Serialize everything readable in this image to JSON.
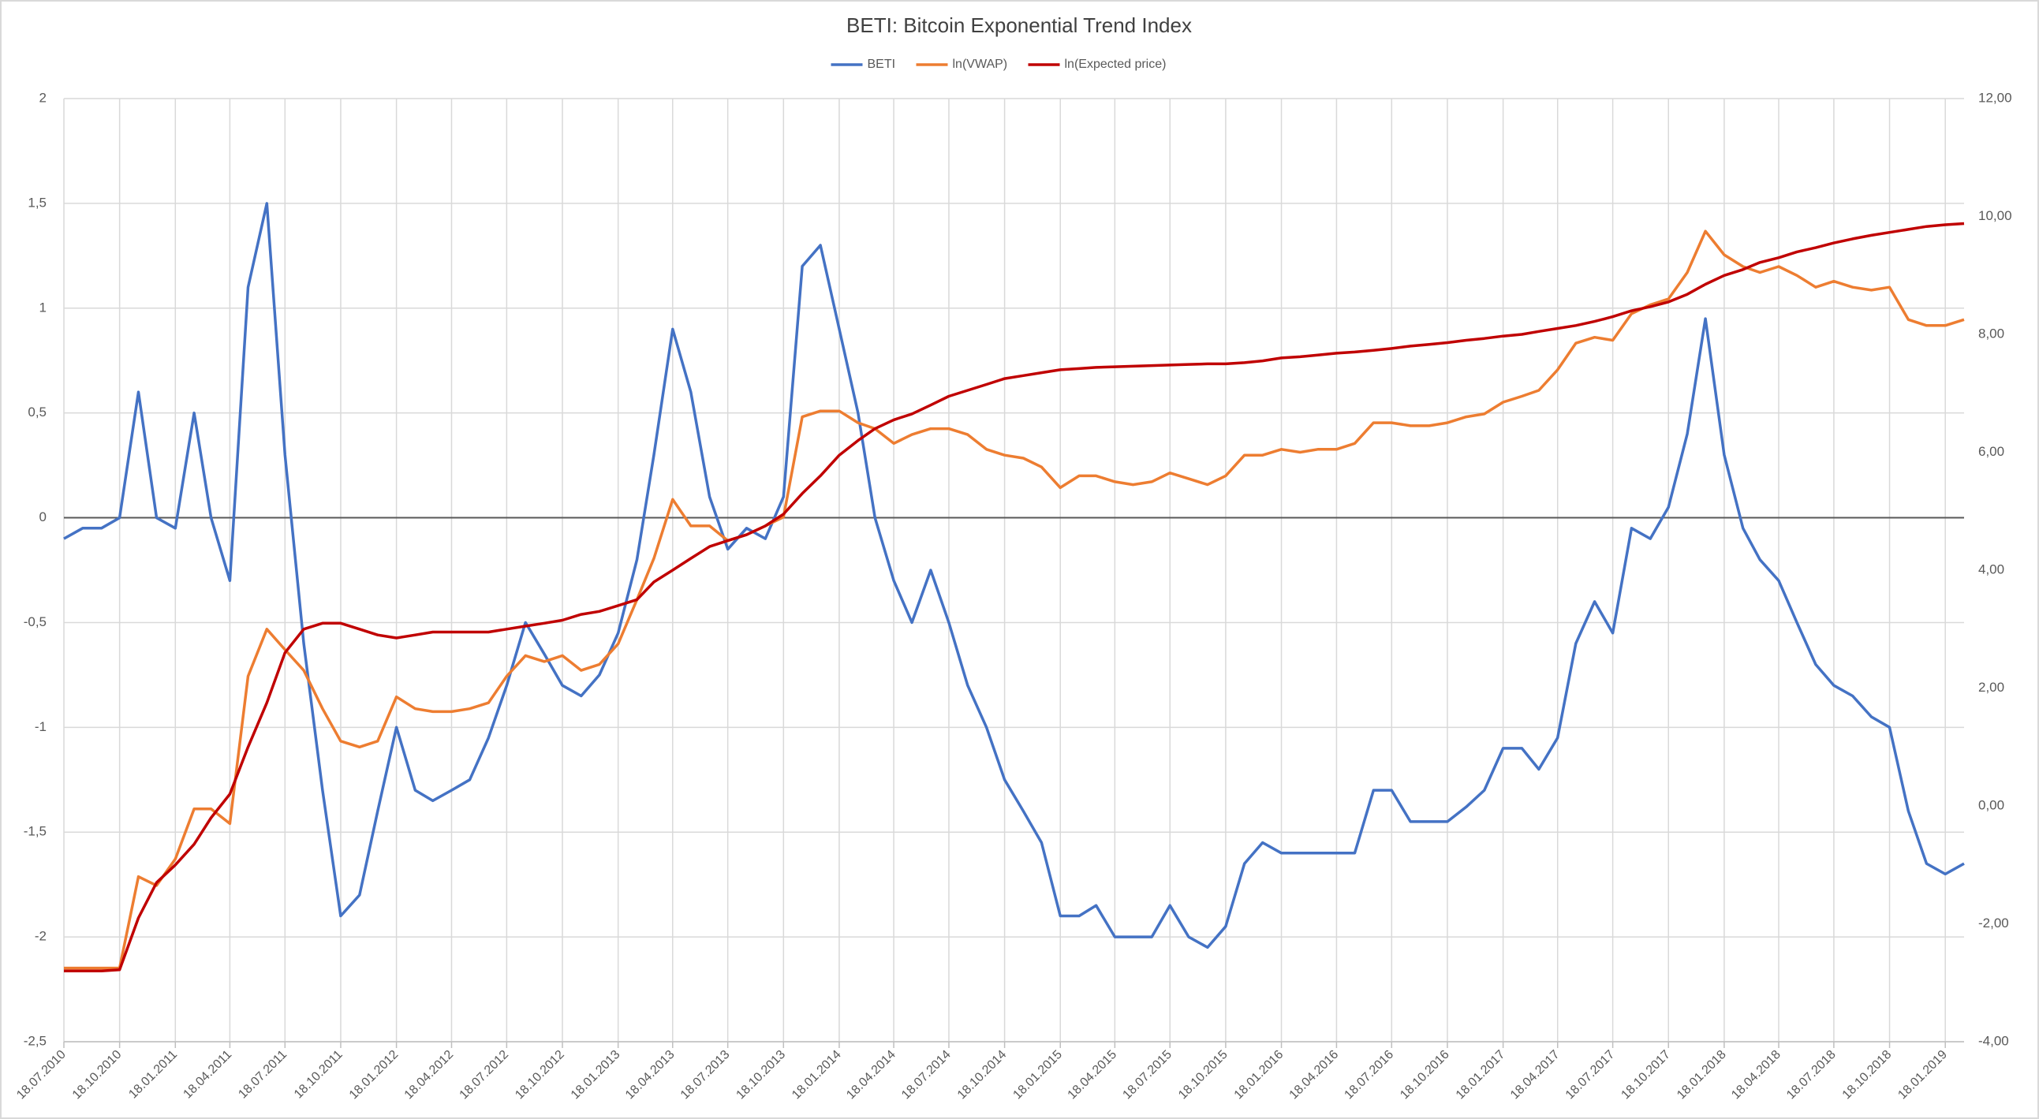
{
  "chart_data": {
    "type": "line",
    "title": "BETI: Bitcoin Exponential Trend Index",
    "x": [
      "18.07.2010",
      "18.08.2010",
      "18.09.2010",
      "18.10.2010",
      "18.11.2010",
      "18.12.2010",
      "18.01.2011",
      "18.02.2011",
      "18.03.2011",
      "18.04.2011",
      "18.05.2011",
      "18.06.2011",
      "18.07.2011",
      "18.08.2011",
      "18.09.2011",
      "18.10.2011",
      "18.11.2011",
      "18.12.2011",
      "18.01.2012",
      "18.02.2012",
      "18.03.2012",
      "18.04.2012",
      "18.05.2012",
      "18.06.2012",
      "18.07.2012",
      "18.08.2012",
      "18.09.2012",
      "18.10.2012",
      "18.11.2012",
      "18.12.2012",
      "18.01.2013",
      "18.02.2013",
      "18.03.2013",
      "18.04.2013",
      "18.05.2013",
      "18.06.2013",
      "18.07.2013",
      "18.08.2013",
      "18.09.2013",
      "18.10.2013",
      "18.11.2013",
      "18.12.2013",
      "18.01.2014",
      "18.02.2014",
      "18.03.2014",
      "18.04.2014",
      "18.05.2014",
      "18.06.2014",
      "18.07.2014",
      "18.08.2014",
      "18.09.2014",
      "18.10.2014",
      "18.11.2014",
      "18.12.2014",
      "18.01.2015",
      "18.02.2015",
      "18.03.2015",
      "18.04.2015",
      "18.05.2015",
      "18.06.2015",
      "18.07.2015",
      "18.08.2015",
      "18.09.2015",
      "18.10.2015",
      "18.11.2015",
      "18.12.2015",
      "18.01.2016",
      "18.02.2016",
      "18.03.2016",
      "18.04.2016",
      "18.05.2016",
      "18.06.2016",
      "18.07.2016",
      "18.08.2016",
      "18.09.2016",
      "18.10.2016",
      "18.11.2016",
      "18.12.2016",
      "18.01.2017",
      "18.02.2017",
      "18.03.2017",
      "18.04.2017",
      "18.05.2017",
      "18.06.2017",
      "18.07.2017",
      "18.08.2017",
      "18.09.2017",
      "18.10.2017",
      "18.11.2017",
      "18.12.2017",
      "18.01.2018",
      "18.02.2018",
      "18.03.2018",
      "18.04.2018",
      "18.05.2018",
      "18.06.2018",
      "18.07.2018",
      "18.08.2018",
      "18.09.2018",
      "18.10.2018",
      "18.11.2018",
      "18.12.2018",
      "18.01.2019",
      "18.02.2019"
    ],
    "series": [
      {
        "name": "BETI",
        "color": "#4472c4",
        "values": [
          -0.1,
          -0.05,
          -0.05,
          0.0,
          0.6,
          0.0,
          -0.05,
          0.5,
          0.0,
          -0.3,
          1.1,
          1.5,
          0.3,
          -0.6,
          -1.3,
          -1.9,
          -1.8,
          -1.4,
          -1.0,
          -1.3,
          -1.35,
          -1.3,
          -1.25,
          -1.05,
          -0.8,
          -0.5,
          -0.65,
          -0.8,
          -0.85,
          -0.75,
          -0.55,
          -0.2,
          0.3,
          0.9,
          0.6,
          0.1,
          -0.15,
          -0.05,
          -0.1,
          0.1,
          1.2,
          1.3,
          0.9,
          0.5,
          0.0,
          -0.3,
          -0.5,
          -0.25,
          -0.5,
          -0.8,
          -1.0,
          -1.25,
          -1.4,
          -1.55,
          -1.9,
          -1.9,
          -1.85,
          -2.0,
          -2.0,
          -2.0,
          -1.85,
          -2.0,
          -2.05,
          -1.95,
          -1.65,
          -1.55,
          -1.6,
          -1.6,
          -1.6,
          -1.6,
          -1.6,
          -1.3,
          -1.3,
          -1.45,
          -1.45,
          -1.45,
          -1.38,
          -1.3,
          -1.1,
          -1.1,
          -1.2,
          -1.05,
          -0.6,
          -0.4,
          -0.55,
          -0.05,
          -0.1,
          0.05,
          0.4,
          0.95,
          0.3,
          -0.05,
          -0.2,
          -0.3,
          -0.5,
          -0.7,
          -0.8,
          -0.85,
          -0.95,
          -1.0,
          -1.4,
          -1.65,
          -1.7,
          -1.65
        ]
      },
      {
        "name": "ln(VWAP)",
        "color": "#ed7d31",
        "axis": "y2",
        "values": [
          -2.75,
          -2.75,
          -2.75,
          -2.75,
          -1.2,
          -1.35,
          -0.9,
          -0.05,
          -0.05,
          -0.3,
          2.2,
          3.0,
          2.65,
          2.3,
          1.65,
          1.1,
          1.0,
          1.1,
          1.85,
          1.65,
          1.6,
          1.6,
          1.65,
          1.75,
          2.2,
          2.55,
          2.45,
          2.55,
          2.3,
          2.4,
          2.75,
          3.5,
          4.2,
          5.2,
          4.75,
          4.75,
          4.5,
          4.6,
          4.75,
          4.9,
          6.6,
          6.7,
          6.7,
          6.5,
          6.4,
          6.15,
          6.3,
          6.4,
          6.4,
          6.3,
          6.05,
          5.95,
          5.9,
          5.75,
          5.4,
          5.6,
          5.6,
          5.5,
          5.45,
          5.5,
          5.65,
          5.55,
          5.45,
          5.6,
          5.95,
          5.95,
          6.05,
          6.0,
          6.05,
          6.05,
          6.15,
          6.5,
          6.5,
          6.45,
          6.45,
          6.5,
          6.6,
          6.65,
          6.85,
          6.95,
          7.05,
          7.4,
          7.85,
          7.95,
          7.9,
          8.35,
          8.5,
          8.6,
          9.05,
          9.75,
          9.35,
          9.15,
          9.05,
          9.15,
          9.0,
          8.8,
          8.9,
          8.8,
          8.75,
          8.8,
          8.25,
          8.15,
          8.15,
          8.25
        ]
      },
      {
        "name": "ln(Expected price)",
        "color": "#c00000",
        "axis": "y2",
        "values": [
          -2.8,
          -2.8,
          -2.8,
          -2.78,
          -1.9,
          -1.3,
          -1.0,
          -0.65,
          -0.2,
          0.2,
          1.0,
          1.75,
          2.6,
          3.0,
          3.1,
          3.1,
          3.0,
          2.9,
          2.85,
          2.9,
          2.95,
          2.95,
          2.95,
          2.95,
          3.0,
          3.05,
          3.1,
          3.15,
          3.25,
          3.3,
          3.4,
          3.5,
          3.8,
          4.0,
          4.2,
          4.4,
          4.5,
          4.6,
          4.75,
          4.95,
          5.3,
          5.6,
          5.95,
          6.2,
          6.4,
          6.55,
          6.65,
          6.8,
          6.95,
          7.05,
          7.15,
          7.25,
          7.3,
          7.35,
          7.4,
          7.42,
          7.44,
          7.45,
          7.46,
          7.47,
          7.48,
          7.49,
          7.5,
          7.5,
          7.52,
          7.55,
          7.6,
          7.62,
          7.65,
          7.68,
          7.7,
          7.73,
          7.76,
          7.8,
          7.83,
          7.86,
          7.9,
          7.93,
          7.97,
          8.0,
          8.05,
          8.1,
          8.15,
          8.22,
          8.3,
          8.4,
          8.47,
          8.55,
          8.68,
          8.85,
          9.0,
          9.1,
          9.22,
          9.3,
          9.4,
          9.47,
          9.55,
          9.62,
          9.68,
          9.73,
          9.78,
          9.83,
          9.86,
          9.88
        ]
      }
    ],
    "xlim": [
      "18.07.2010",
      "18.02.2019"
    ],
    "xticks": [
      "18.07.2010",
      "18.10.2010",
      "18.01.2011",
      "18.04.2011",
      "18.07.2011",
      "18.10.2011",
      "18.01.2012",
      "18.04.2012",
      "18.07.2012",
      "18.10.2012",
      "18.01.2013",
      "18.04.2013",
      "18.07.2013",
      "18.10.2013",
      "18.01.2014",
      "18.04.2014",
      "18.07.2014",
      "18.10.2014",
      "18.01.2015",
      "18.04.2015",
      "18.07.2015",
      "18.10.2015",
      "18.01.2016",
      "18.04.2016",
      "18.07.2016",
      "18.10.2016",
      "18.01.2017",
      "18.04.2017",
      "18.07.2017",
      "18.10.2017",
      "18.01.2018",
      "18.04.2018",
      "18.07.2018",
      "18.10.2018",
      "18.01.2019"
    ],
    "ylim": [
      -2.5,
      2
    ],
    "yticks": [
      {
        "value": -2.5,
        "label": "-2,5"
      },
      -2,
      {
        "value": -1.5,
        "label": "-1,5"
      },
      -1,
      {
        "value": -0.5,
        "label": "-0,5"
      },
      0,
      {
        "value": 0.5,
        "label": "0,5"
      },
      1,
      {
        "value": 1.5,
        "label": "1,5"
      },
      2
    ],
    "y2lim": [
      -4,
      12
    ],
    "y2ticks": [
      {
        "value": -4,
        "label": "-4,00"
      },
      {
        "value": -2,
        "label": "-2,00"
      },
      {
        "value": 0,
        "label": "0,00"
      },
      {
        "value": 2,
        "label": "2,00"
      },
      {
        "value": 4,
        "label": "4,00"
      },
      {
        "value": 6,
        "label": "6,00"
      },
      {
        "value": 8,
        "label": "8,00"
      },
      {
        "value": 10,
        "label": "10,00"
      },
      {
        "value": 12,
        "label": "12,00"
      }
    ],
    "grid": true,
    "legend": "top"
  }
}
